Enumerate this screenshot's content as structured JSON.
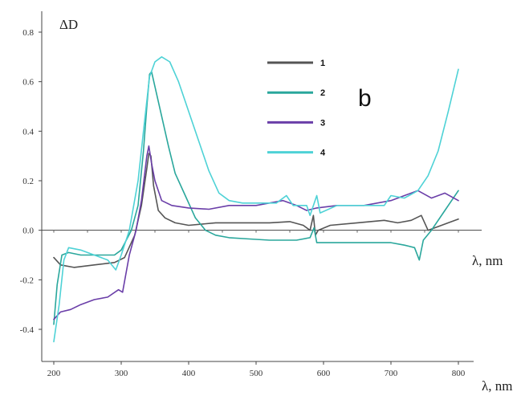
{
  "chart_data": {
    "type": "line",
    "panel_label": "b",
    "ylabel": "ΔD",
    "xlabel_top": "λ, nm",
    "xlabel_bottom": "λ, nm",
    "xlim": [
      180,
      830
    ],
    "ylim": [
      -0.5,
      0.85
    ],
    "x_ticks": [
      200,
      300,
      400,
      500,
      600,
      700,
      800
    ],
    "y_ticks": [
      -0.4,
      -0.2,
      0.0,
      0.2,
      0.4,
      0.6,
      0.8
    ],
    "y_tick_labels": [
      "-0.4",
      "-0.2",
      "0.0",
      "0.2",
      "0.4",
      "0.6",
      "0.8"
    ],
    "legend_position": "top-center",
    "series": [
      {
        "name": "1",
        "color": "#555555",
        "points": [
          [
            200,
            -0.11
          ],
          [
            210,
            -0.14
          ],
          [
            230,
            -0.15
          ],
          [
            260,
            -0.14
          ],
          [
            290,
            -0.13
          ],
          [
            305,
            -0.11
          ],
          [
            320,
            -0.02
          ],
          [
            330,
            0.1
          ],
          [
            338,
            0.25
          ],
          [
            341,
            0.31
          ],
          [
            344,
            0.3
          ],
          [
            348,
            0.18
          ],
          [
            355,
            0.08
          ],
          [
            365,
            0.05
          ],
          [
            380,
            0.03
          ],
          [
            400,
            0.02
          ],
          [
            440,
            0.03
          ],
          [
            480,
            0.03
          ],
          [
            520,
            0.03
          ],
          [
            550,
            0.035
          ],
          [
            570,
            0.02
          ],
          [
            580,
            0.0
          ],
          [
            585,
            0.06
          ],
          [
            588,
            -0.02
          ],
          [
            592,
            0.0
          ],
          [
            610,
            0.02
          ],
          [
            650,
            0.03
          ],
          [
            690,
            0.04
          ],
          [
            710,
            0.03
          ],
          [
            730,
            0.04
          ],
          [
            745,
            0.06
          ],
          [
            755,
            0.0
          ],
          [
            765,
            0.01
          ],
          [
            785,
            0.03
          ],
          [
            800,
            0.045
          ]
        ]
      },
      {
        "name": "2",
        "color": "#2aa79c",
        "points": [
          [
            200,
            -0.38
          ],
          [
            205,
            -0.22
          ],
          [
            212,
            -0.1
          ],
          [
            222,
            -0.09
          ],
          [
            240,
            -0.1
          ],
          [
            265,
            -0.1
          ],
          [
            290,
            -0.1
          ],
          [
            300,
            -0.08
          ],
          [
            315,
            0.0
          ],
          [
            325,
            0.1
          ],
          [
            333,
            0.32
          ],
          [
            338,
            0.5
          ],
          [
            342,
            0.63
          ],
          [
            345,
            0.64
          ],
          [
            350,
            0.58
          ],
          [
            360,
            0.46
          ],
          [
            370,
            0.34
          ],
          [
            380,
            0.23
          ],
          [
            395,
            0.14
          ],
          [
            410,
            0.05
          ],
          [
            425,
            0.0
          ],
          [
            440,
            -0.02
          ],
          [
            460,
            -0.03
          ],
          [
            490,
            -0.035
          ],
          [
            520,
            -0.04
          ],
          [
            560,
            -0.04
          ],
          [
            580,
            -0.03
          ],
          [
            586,
            0.01
          ],
          [
            590,
            -0.05
          ],
          [
            600,
            -0.05
          ],
          [
            650,
            -0.05
          ],
          [
            700,
            -0.05
          ],
          [
            720,
            -0.06
          ],
          [
            735,
            -0.07
          ],
          [
            742,
            -0.12
          ],
          [
            748,
            -0.04
          ],
          [
            760,
            0.0
          ],
          [
            780,
            0.08
          ],
          [
            800,
            0.16
          ]
        ]
      },
      {
        "name": "3",
        "color": "#6a3ea8",
        "points": [
          [
            200,
            -0.36
          ],
          [
            210,
            -0.33
          ],
          [
            225,
            -0.32
          ],
          [
            240,
            -0.3
          ],
          [
            260,
            -0.28
          ],
          [
            280,
            -0.27
          ],
          [
            296,
            -0.24
          ],
          [
            302,
            -0.25
          ],
          [
            312,
            -0.1
          ],
          [
            322,
            0.0
          ],
          [
            330,
            0.12
          ],
          [
            338,
            0.3
          ],
          [
            341,
            0.34
          ],
          [
            345,
            0.27
          ],
          [
            350,
            0.2
          ],
          [
            360,
            0.12
          ],
          [
            375,
            0.1
          ],
          [
            400,
            0.09
          ],
          [
            430,
            0.085
          ],
          [
            460,
            0.1
          ],
          [
            500,
            0.1
          ],
          [
            540,
            0.12
          ],
          [
            560,
            0.1
          ],
          [
            575,
            0.08
          ],
          [
            590,
            0.09
          ],
          [
            620,
            0.1
          ],
          [
            660,
            0.1
          ],
          [
            700,
            0.12
          ],
          [
            720,
            0.14
          ],
          [
            740,
            0.16
          ],
          [
            760,
            0.13
          ],
          [
            780,
            0.15
          ],
          [
            800,
            0.12
          ]
        ]
      },
      {
        "name": "4",
        "color": "#4ed2d6",
        "points": [
          [
            200,
            -0.45
          ],
          [
            208,
            -0.3
          ],
          [
            215,
            -0.12
          ],
          [
            222,
            -0.07
          ],
          [
            240,
            -0.08
          ],
          [
            260,
            -0.1
          ],
          [
            280,
            -0.12
          ],
          [
            292,
            -0.16
          ],
          [
            300,
            -0.1
          ],
          [
            312,
            0.0
          ],
          [
            325,
            0.2
          ],
          [
            335,
            0.45
          ],
          [
            342,
            0.62
          ],
          [
            350,
            0.68
          ],
          [
            360,
            0.7
          ],
          [
            372,
            0.68
          ],
          [
            385,
            0.6
          ],
          [
            400,
            0.48
          ],
          [
            415,
            0.36
          ],
          [
            430,
            0.24
          ],
          [
            445,
            0.15
          ],
          [
            460,
            0.12
          ],
          [
            480,
            0.11
          ],
          [
            500,
            0.11
          ],
          [
            530,
            0.11
          ],
          [
            545,
            0.14
          ],
          [
            555,
            0.1
          ],
          [
            575,
            0.1
          ],
          [
            580,
            0.06
          ],
          [
            590,
            0.14
          ],
          [
            595,
            0.07
          ],
          [
            620,
            0.1
          ],
          [
            660,
            0.1
          ],
          [
            690,
            0.1
          ],
          [
            700,
            0.14
          ],
          [
            720,
            0.13
          ],
          [
            740,
            0.16
          ],
          [
            755,
            0.22
          ],
          [
            770,
            0.32
          ],
          [
            785,
            0.48
          ],
          [
            800,
            0.65
          ]
        ]
      }
    ]
  }
}
